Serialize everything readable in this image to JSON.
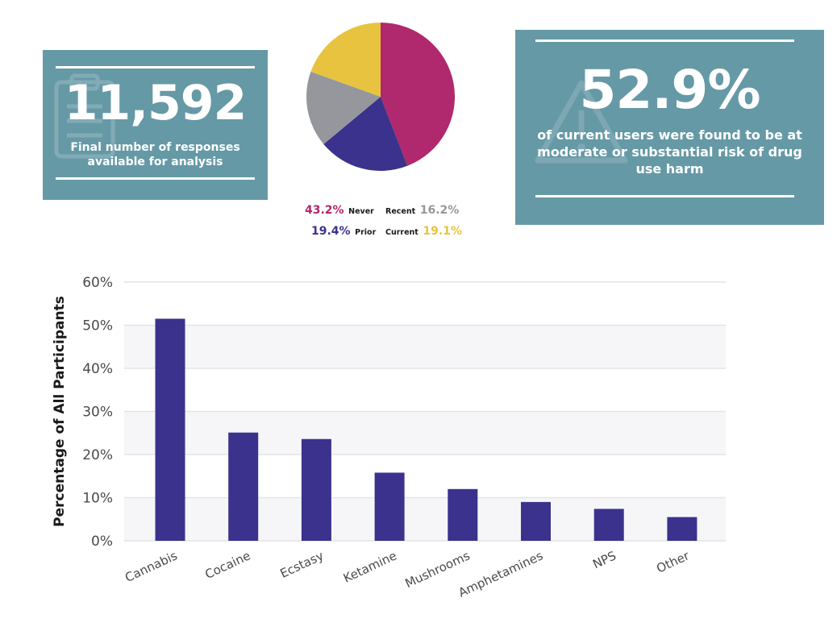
{
  "stat_responses": {
    "value": "11,592",
    "caption": "Final number of responses available for analysis"
  },
  "stat_risk": {
    "value": "52.9%",
    "caption": "of current users were found to be at moderate or substantial risk of drug use harm"
  },
  "pie": {
    "slices": [
      {
        "label": "Never",
        "pct_text": "43.2%",
        "value": 43.2,
        "color": "#b0286d"
      },
      {
        "label": "Prior",
        "pct_text": "19.4%",
        "value": 19.4,
        "color": "#3a328c"
      },
      {
        "label": "Recent",
        "pct_text": "16.2%",
        "value": 16.2,
        "color": "#95979c"
      },
      {
        "label": "Current",
        "pct_text": "19.1%",
        "value": 19.1,
        "color": "#e8c33f"
      }
    ]
  },
  "chart_data": {
    "type": "bar",
    "categories": [
      "Cannabis",
      "Cocaine",
      "Ecstasy",
      "Ketamine",
      "Mushrooms",
      "Amphetamines",
      "NPS",
      "Other"
    ],
    "values": [
      51.5,
      25.1,
      23.6,
      15.8,
      12.0,
      9.0,
      7.4,
      5.5
    ],
    "ylabel": "Percentage of All Participants",
    "ylim": [
      0,
      60
    ],
    "yticks": [
      "0%",
      "10%",
      "20%",
      "30%",
      "40%",
      "50%",
      "60%"
    ],
    "grid": true,
    "bar_color": "#3a328c"
  }
}
